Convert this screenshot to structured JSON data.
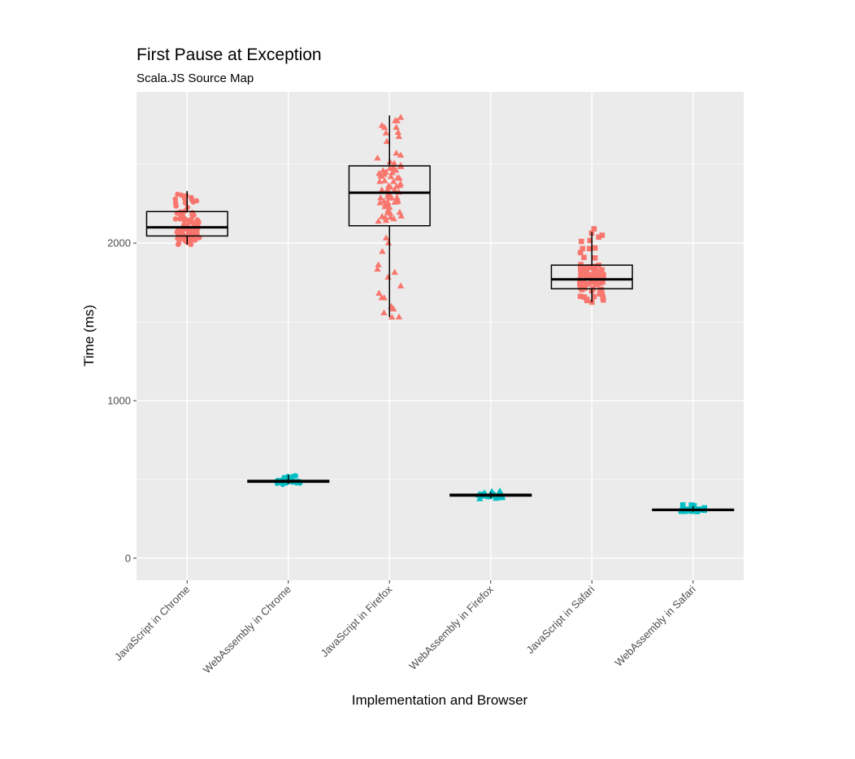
{
  "chart_data": {
    "type": "boxplot",
    "title": "First Pause at Exception",
    "subtitle": "Scala.JS Source Map",
    "xlabel": "Implementation and Browser",
    "ylabel": "Time (ms)",
    "ylim": [
      -140,
      2960
    ],
    "yticks": [
      0,
      1000,
      2000
    ],
    "yticks_minor": [
      500,
      1500,
      2500
    ],
    "grid": true,
    "legend": "none",
    "colors": {
      "JavaScript": "#F8766D",
      "WebAssembly": "#00BFC4",
      "panel": "#EBEBEB",
      "grid": "#FFFFFF",
      "box": "#000000"
    },
    "categories": [
      "JavaScript in Chrome",
      "WebAssembly in Chrome",
      "JavaScript in Firefox",
      "WebAssembly in Firefox",
      "JavaScript in Safari",
      "WebAssembly in Safari"
    ],
    "series": [
      {
        "name": "JavaScript in Chrome",
        "group": "JavaScript",
        "browser": "Chrome",
        "shape": "circle",
        "min": 1990,
        "q1": 2045,
        "median": 2100,
        "q3": 2200,
        "max": 2330,
        "points_range": [
          1990,
          2330
        ],
        "n_points": 90
      },
      {
        "name": "WebAssembly in Chrome",
        "group": "WebAssembly",
        "browser": "Chrome",
        "shape": "circle",
        "min": 470,
        "q1": 482,
        "median": 488,
        "q3": 494,
        "max": 530,
        "points_range": [
          468,
          530
        ],
        "n_points": 40
      },
      {
        "name": "JavaScript in Firefox",
        "group": "JavaScript",
        "browser": "Firefox",
        "shape": "triangle",
        "min": 1530,
        "q1": 2110,
        "median": 2320,
        "q3": 2490,
        "max": 2810,
        "points_range": [
          1520,
          2810
        ],
        "n_points": 90
      },
      {
        "name": "WebAssembly in Firefox",
        "group": "WebAssembly",
        "browser": "Firefox",
        "shape": "triangle",
        "min": 380,
        "q1": 394,
        "median": 400,
        "q3": 406,
        "max": 420,
        "points_range": [
          375,
          430
        ],
        "n_points": 40
      },
      {
        "name": "JavaScript in Safari",
        "group": "JavaScript",
        "browser": "Safari",
        "shape": "square",
        "min": 1625,
        "q1": 1710,
        "median": 1770,
        "q3": 1860,
        "max": 2070,
        "points_range": [
          1620,
          2100
        ],
        "n_points": 90
      },
      {
        "name": "WebAssembly in Safari",
        "group": "WebAssembly",
        "browser": "Safari",
        "shape": "square",
        "min": 295,
        "q1": 302,
        "median": 306,
        "q3": 311,
        "max": 330,
        "points_range": [
          295,
          340
        ],
        "n_points": 40
      }
    ]
  }
}
